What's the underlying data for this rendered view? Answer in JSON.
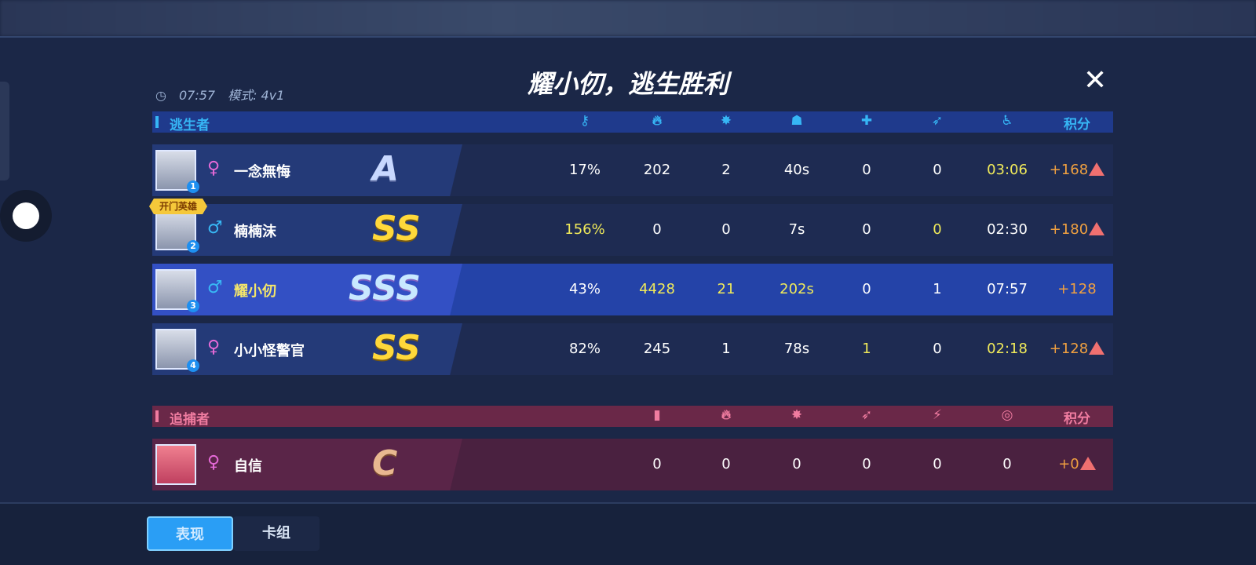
{
  "title": "耀小仞，逃生胜利",
  "close_icon": "close-icon",
  "match": {
    "time": "07:57",
    "mode": "模式: 4v1"
  },
  "open_door_badge": "开门英雄",
  "survivors": {
    "label": "逃生者",
    "columns": [
      {
        "icon": "key-icon"
      },
      {
        "icon": "fire-icon"
      },
      {
        "icon": "hit-icon"
      },
      {
        "icon": "bound-icon"
      },
      {
        "icon": "medkit-icon"
      },
      {
        "icon": "rescue-icon"
      },
      {
        "icon": "survive-time-icon"
      },
      {
        "label": "积分"
      }
    ],
    "rows": [
      {
        "num": "1",
        "gender": "♀",
        "name": "一念無悔",
        "rank": "A",
        "values": [
          "17%",
          "202",
          "2",
          "40s",
          "0",
          "0",
          "03:06",
          "+168"
        ],
        "warning": true
      },
      {
        "num": "2",
        "gender": "♂",
        "name": "楠楠沫",
        "rank": "SS",
        "values": [
          "156%",
          "0",
          "0",
          "7s",
          "0",
          "0",
          "02:30",
          "+180"
        ],
        "warning": true
      },
      {
        "num": "3",
        "gender": "♂",
        "name": "耀小仞",
        "rank": "SSS",
        "values": [
          "43%",
          "4428",
          "21",
          "202s",
          "0",
          "1",
          "07:57",
          "+128"
        ],
        "warning": false
      },
      {
        "num": "4",
        "gender": "♀",
        "name": "小小怪警官",
        "rank": "SS",
        "values": [
          "82%",
          "245",
          "1",
          "78s",
          "1",
          "0",
          "02:18",
          "+128"
        ],
        "warning": true
      }
    ]
  },
  "hunters": {
    "label": "追捕者",
    "columns": [
      {
        "icon": "door-icon"
      },
      {
        "icon": "fire-icon"
      },
      {
        "icon": "hit-icon"
      },
      {
        "icon": "chase-icon"
      },
      {
        "icon": "attack-icon"
      },
      {
        "icon": "target-icon"
      },
      {
        "label": "积分"
      }
    ],
    "rows": [
      {
        "gender": "♀",
        "name": "自信",
        "rank": "C",
        "values": [
          "0",
          "0",
          "0",
          "0",
          "0",
          "0",
          "+0"
        ],
        "warning": true
      }
    ]
  },
  "tabs": [
    {
      "label": "表现",
      "active": true
    },
    {
      "label": "卡组",
      "active": false
    }
  ],
  "colors": {
    "survivor_accent": "#36b6f5",
    "hunter_accent": "#f07ca0",
    "highlight_value": "#f0ea5a",
    "score": "#f0a040"
  }
}
